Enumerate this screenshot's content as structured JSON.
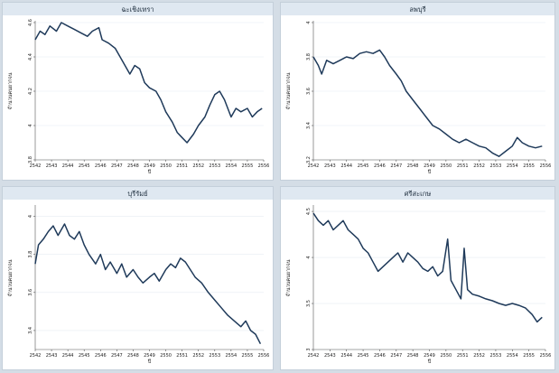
{
  "chart_data": [
    {
      "type": "line",
      "title": "ฉะเชิงเทรา",
      "xlabel": "ปี",
      "ylabel": "จำนวนคนยากจน",
      "color": "#1f3a5a",
      "x_ticks": [
        "2542",
        "2543",
        "2544",
        "2545",
        "2546",
        "2547",
        "2548",
        "2549",
        "2550",
        "2551",
        "2552",
        "2553",
        "2554",
        "2555",
        "2556"
      ],
      "y_ticks": [
        "3.8",
        "4",
        "4.2",
        "4.4",
        "4.6"
      ],
      "xlim": [
        2542,
        2556
      ],
      "ylim": [
        3.8,
        4.6
      ],
      "points": [
        [
          2542.0,
          4.5
        ],
        [
          2542.3,
          4.55
        ],
        [
          2542.6,
          4.53
        ],
        [
          2542.9,
          4.58
        ],
        [
          2543.3,
          4.55
        ],
        [
          2543.6,
          4.6
        ],
        [
          2544.0,
          4.58
        ],
        [
          2544.4,
          4.56
        ],
        [
          2544.8,
          4.54
        ],
        [
          2545.2,
          4.52
        ],
        [
          2545.5,
          4.55
        ],
        [
          2545.9,
          4.57
        ],
        [
          2546.1,
          4.5
        ],
        [
          2546.5,
          4.48
        ],
        [
          2546.9,
          4.45
        ],
        [
          2547.2,
          4.4
        ],
        [
          2547.5,
          4.35
        ],
        [
          2547.8,
          4.3
        ],
        [
          2548.1,
          4.35
        ],
        [
          2548.4,
          4.33
        ],
        [
          2548.7,
          4.25
        ],
        [
          2549.0,
          4.22
        ],
        [
          2549.4,
          4.2
        ],
        [
          2549.7,
          4.15
        ],
        [
          2550.0,
          4.08
        ],
        [
          2550.4,
          4.02
        ],
        [
          2550.7,
          3.96
        ],
        [
          2551.0,
          3.93
        ],
        [
          2551.3,
          3.9
        ],
        [
          2551.7,
          3.95
        ],
        [
          2552.0,
          4.0
        ],
        [
          2552.4,
          4.05
        ],
        [
          2552.7,
          4.12
        ],
        [
          2553.0,
          4.18
        ],
        [
          2553.3,
          4.2
        ],
        [
          2553.6,
          4.15
        ],
        [
          2554.0,
          4.05
        ],
        [
          2554.3,
          4.1
        ],
        [
          2554.6,
          4.08
        ],
        [
          2555.0,
          4.1
        ],
        [
          2555.3,
          4.05
        ],
        [
          2555.6,
          4.08
        ],
        [
          2555.9,
          4.1
        ]
      ]
    },
    {
      "type": "line",
      "title": "ลพบุรี",
      "xlabel": "ปี",
      "ylabel": "จำนวนคนยากจน",
      "color": "#1f3a5a",
      "x_ticks": [
        "2542",
        "2543",
        "2544",
        "2545",
        "2546",
        "2547",
        "2548",
        "2549",
        "2550",
        "2551",
        "2552",
        "2553",
        "2554",
        "2555",
        "2556"
      ],
      "y_ticks": [
        "3.2",
        "3.4",
        "3.6",
        "3.8",
        "4"
      ],
      "xlim": [
        2542,
        2556
      ],
      "ylim": [
        3.2,
        4.0
      ],
      "points": [
        [
          2542.0,
          3.8
        ],
        [
          2542.3,
          3.75
        ],
        [
          2542.5,
          3.7
        ],
        [
          2542.8,
          3.78
        ],
        [
          2543.2,
          3.76
        ],
        [
          2543.6,
          3.78
        ],
        [
          2544.0,
          3.8
        ],
        [
          2544.4,
          3.79
        ],
        [
          2544.8,
          3.82
        ],
        [
          2545.2,
          3.83
        ],
        [
          2545.6,
          3.82
        ],
        [
          2546.0,
          3.84
        ],
        [
          2546.3,
          3.8
        ],
        [
          2546.6,
          3.75
        ],
        [
          2547.0,
          3.7
        ],
        [
          2547.3,
          3.66
        ],
        [
          2547.6,
          3.6
        ],
        [
          2548.0,
          3.55
        ],
        [
          2548.4,
          3.5
        ],
        [
          2548.8,
          3.45
        ],
        [
          2549.2,
          3.4
        ],
        [
          2549.6,
          3.38
        ],
        [
          2550.0,
          3.35
        ],
        [
          2550.4,
          3.32
        ],
        [
          2550.8,
          3.3
        ],
        [
          2551.2,
          3.32
        ],
        [
          2551.6,
          3.3
        ],
        [
          2552.0,
          3.28
        ],
        [
          2552.4,
          3.27
        ],
        [
          2552.8,
          3.24
        ],
        [
          2553.2,
          3.22
        ],
        [
          2553.6,
          3.25
        ],
        [
          2554.0,
          3.28
        ],
        [
          2554.3,
          3.33
        ],
        [
          2554.6,
          3.3
        ],
        [
          2555.0,
          3.28
        ],
        [
          2555.4,
          3.27
        ],
        [
          2555.8,
          3.28
        ]
      ]
    },
    {
      "type": "line",
      "title": "บุรีรัมย์",
      "xlabel": "ปี",
      "ylabel": "จำนวนคนยากจน",
      "color": "#1f3a5a",
      "x_ticks": [
        "2542",
        "2543",
        "2544",
        "2545",
        "2546",
        "2547",
        "2548",
        "2549",
        "2550",
        "2551",
        "2552",
        "2553",
        "2554",
        "2555",
        "2556"
      ],
      "y_ticks": [
        "3.4",
        "3.6",
        "3.8",
        "4"
      ],
      "xlim": [
        2542,
        2556
      ],
      "ylim": [
        3.3,
        4.05
      ],
      "points": [
        [
          2542.0,
          3.75
        ],
        [
          2542.2,
          3.85
        ],
        [
          2542.5,
          3.88
        ],
        [
          2542.8,
          3.92
        ],
        [
          2543.1,
          3.95
        ],
        [
          2543.4,
          3.9
        ],
        [
          2543.8,
          3.96
        ],
        [
          2544.1,
          3.9
        ],
        [
          2544.4,
          3.88
        ],
        [
          2544.7,
          3.92
        ],
        [
          2545.0,
          3.85
        ],
        [
          2545.3,
          3.8
        ],
        [
          2545.7,
          3.75
        ],
        [
          2546.0,
          3.8
        ],
        [
          2546.3,
          3.72
        ],
        [
          2546.6,
          3.76
        ],
        [
          2547.0,
          3.7
        ],
        [
          2547.3,
          3.75
        ],
        [
          2547.6,
          3.68
        ],
        [
          2548.0,
          3.72
        ],
        [
          2548.3,
          3.68
        ],
        [
          2548.6,
          3.65
        ],
        [
          2549.0,
          3.68
        ],
        [
          2549.3,
          3.7
        ],
        [
          2549.6,
          3.66
        ],
        [
          2550.0,
          3.72
        ],
        [
          2550.3,
          3.75
        ],
        [
          2550.6,
          3.73
        ],
        [
          2550.9,
          3.78
        ],
        [
          2551.2,
          3.76
        ],
        [
          2551.5,
          3.72
        ],
        [
          2551.8,
          3.68
        ],
        [
          2552.2,
          3.65
        ],
        [
          2552.6,
          3.6
        ],
        [
          2553.0,
          3.56
        ],
        [
          2553.4,
          3.52
        ],
        [
          2553.8,
          3.48
        ],
        [
          2554.2,
          3.45
        ],
        [
          2554.6,
          3.42
        ],
        [
          2554.9,
          3.45
        ],
        [
          2555.2,
          3.4
        ],
        [
          2555.5,
          3.38
        ],
        [
          2555.8,
          3.33
        ]
      ]
    },
    {
      "type": "line",
      "title": "ศรีสะเกษ",
      "xlabel": "ปี",
      "ylabel": "จำนวนคนยากจน",
      "color": "#1f3a5a",
      "x_ticks": [
        "2542",
        "2543",
        "2544",
        "2545",
        "2546",
        "2547",
        "2548",
        "2549",
        "2550",
        "2551",
        "2552",
        "2553",
        "2554",
        "2555",
        "2556"
      ],
      "y_ticks": [
        "3",
        "3.5",
        "4",
        "4.5"
      ],
      "xlim": [
        2542,
        2556
      ],
      "ylim": [
        3.0,
        4.55
      ],
      "points": [
        [
          2542.0,
          4.48
        ],
        [
          2542.3,
          4.4
        ],
        [
          2542.6,
          4.35
        ],
        [
          2542.9,
          4.4
        ],
        [
          2543.2,
          4.3
        ],
        [
          2543.5,
          4.35
        ],
        [
          2543.8,
          4.4
        ],
        [
          2544.1,
          4.3
        ],
        [
          2544.4,
          4.25
        ],
        [
          2544.7,
          4.2
        ],
        [
          2545.0,
          4.1
        ],
        [
          2545.3,
          4.05
        ],
        [
          2545.6,
          3.95
        ],
        [
          2545.9,
          3.85
        ],
        [
          2546.2,
          3.9
        ],
        [
          2546.5,
          3.95
        ],
        [
          2546.8,
          4.0
        ],
        [
          2547.1,
          4.05
        ],
        [
          2547.4,
          3.95
        ],
        [
          2547.7,
          4.05
        ],
        [
          2548.0,
          4.0
        ],
        [
          2548.3,
          3.95
        ],
        [
          2548.6,
          3.88
        ],
        [
          2548.9,
          3.85
        ],
        [
          2549.2,
          3.9
        ],
        [
          2549.5,
          3.8
        ],
        [
          2549.8,
          3.85
        ],
        [
          2550.1,
          4.2
        ],
        [
          2550.3,
          3.75
        ],
        [
          2550.6,
          3.65
        ],
        [
          2550.9,
          3.55
        ],
        [
          2551.1,
          4.1
        ],
        [
          2551.3,
          3.65
        ],
        [
          2551.6,
          3.6
        ],
        [
          2552.0,
          3.58
        ],
        [
          2552.4,
          3.55
        ],
        [
          2552.8,
          3.53
        ],
        [
          2553.2,
          3.5
        ],
        [
          2553.6,
          3.48
        ],
        [
          2554.0,
          3.5
        ],
        [
          2554.4,
          3.48
        ],
        [
          2554.8,
          3.45
        ],
        [
          2555.2,
          3.38
        ],
        [
          2555.5,
          3.3
        ],
        [
          2555.8,
          3.35
        ]
      ]
    }
  ]
}
